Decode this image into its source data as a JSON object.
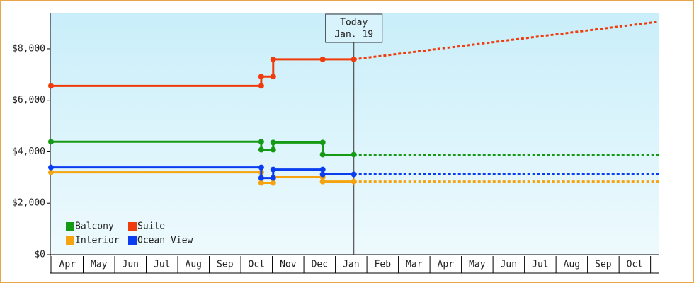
{
  "chart_data": {
    "type": "step-line",
    "xlim": [
      0,
      19.3
    ],
    "xticks": [
      {
        "value": 0.5,
        "label": "Apr"
      },
      {
        "value": 1.5,
        "label": "May"
      },
      {
        "value": 2.5,
        "label": "Jun"
      },
      {
        "value": 3.5,
        "label": "Jul"
      },
      {
        "value": 4.5,
        "label": "Aug"
      },
      {
        "value": 5.5,
        "label": "Sep"
      },
      {
        "value": 6.5,
        "label": "Oct"
      },
      {
        "value": 7.5,
        "label": "Nov"
      },
      {
        "value": 8.5,
        "label": "Dec"
      },
      {
        "value": 9.5,
        "label": "Jan"
      },
      {
        "value": 10.5,
        "label": "Feb"
      },
      {
        "value": 11.5,
        "label": "Mar"
      },
      {
        "value": 12.5,
        "label": "Apr"
      },
      {
        "value": 13.5,
        "label": "May"
      },
      {
        "value": 14.5,
        "label": "Jun"
      },
      {
        "value": 15.5,
        "label": "Jul"
      },
      {
        "value": 16.5,
        "label": "Aug"
      },
      {
        "value": 17.5,
        "label": "Sep"
      },
      {
        "value": 18.5,
        "label": "Oct"
      }
    ],
    "ylim": [
      0,
      9400
    ],
    "yticks": [
      {
        "value": 0,
        "label": "$0"
      },
      {
        "value": 2000,
        "label": "$2,000"
      },
      {
        "value": 4000,
        "label": "$4,000"
      },
      {
        "value": 6000,
        "label": "$6,000"
      },
      {
        "value": 8000,
        "label": "$8,000"
      }
    ],
    "annotation": {
      "text": [
        "Today",
        "Jan. 19"
      ],
      "x": 9.61
    },
    "legend": "lower left",
    "series": [
      {
        "name": "Balcony",
        "color": "#169a16",
        "x": [
          0,
          6.67,
          6.67,
          7.05,
          7.05,
          8.62,
          8.62,
          9.61
        ],
        "values": [
          4390,
          4390,
          4080,
          4080,
          4360,
          4360,
          3890,
          3890
        ],
        "forecast": {
          "x": [
            9.61,
            19.28
          ],
          "values": [
            3890,
            3890
          ]
        }
      },
      {
        "name": "Suite",
        "color": "#f03c0c",
        "x": [
          0,
          6.67,
          6.67,
          7.05,
          7.05,
          8.62,
          9.61
        ],
        "values": [
          6560,
          6560,
          6920,
          6920,
          7590,
          7590,
          7590
        ],
        "forecast": {
          "x": [
            9.61,
            19.28
          ],
          "values": [
            7590,
            9050
          ]
        }
      },
      {
        "name": "Interior",
        "color": "#f5a30f",
        "x": [
          0,
          6.67,
          6.67,
          7.05,
          7.05,
          8.62,
          8.62,
          9.61
        ],
        "values": [
          3200,
          3200,
          2790,
          2790,
          3010,
          3010,
          2840,
          2840
        ],
        "forecast": {
          "x": [
            9.61,
            19.28
          ],
          "values": [
            2840,
            2840
          ]
        }
      },
      {
        "name": "Ocean View",
        "color": "#0a3cf0",
        "x": [
          0,
          6.67,
          6.67,
          7.05,
          7.05,
          8.62,
          8.62,
          9.61
        ],
        "values": [
          3390,
          3390,
          2980,
          2980,
          3310,
          3310,
          3120,
          3120
        ],
        "forecast": {
          "x": [
            9.61,
            19.28
          ],
          "values": [
            3120,
            3120
          ]
        }
      }
    ]
  }
}
